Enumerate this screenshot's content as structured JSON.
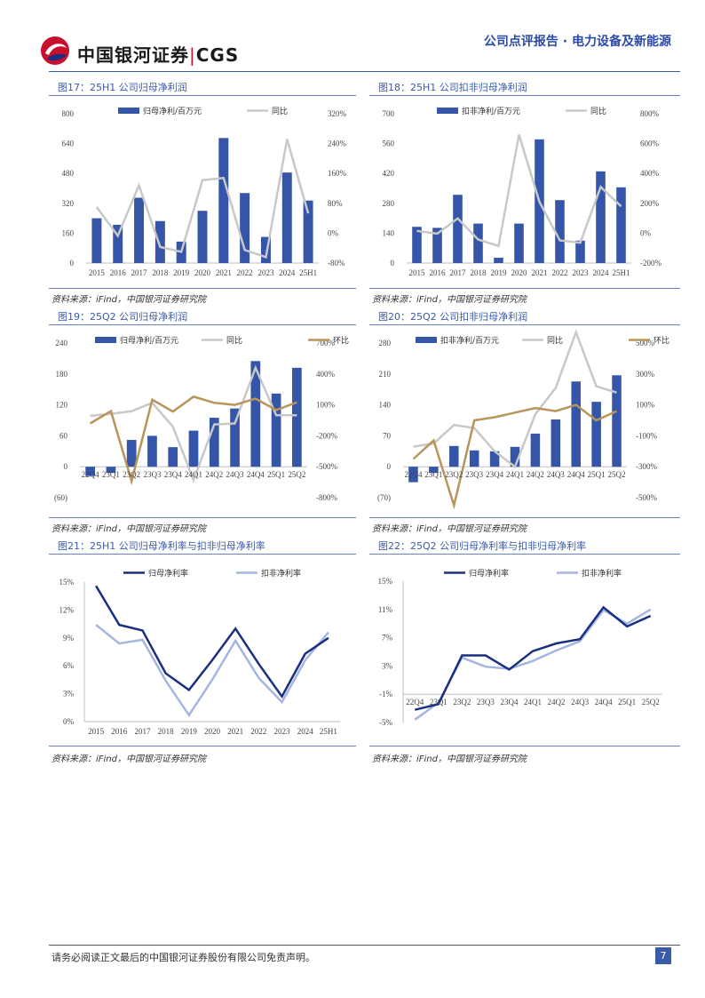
{
  "header": {
    "logo_text": "中国银河证券",
    "logo_sep": "|",
    "logo_en": "CGS",
    "report_type": "公司点评报告 · 电力设备及新能源"
  },
  "figures": [
    {
      "title": "图17：25H1 公司归母净利润",
      "source": "资料来源：iFind，中国银河证券研究院"
    },
    {
      "title": "图18：25H1 公司扣非归母净利润",
      "source": "资料来源：iFind，中国银河证券研究院"
    },
    {
      "title": "图19：25Q2 公司归母净利润",
      "source": "资料来源：iFind，中国银河证券研究院"
    },
    {
      "title": "图20：25Q2 公司扣非归母净利润",
      "source": "资料来源：iFind，中国银河证券研究院"
    },
    {
      "title": "图21：25H1 公司归母净利率与扣非归母净利率",
      "source": "资料来源：iFind，中国银河证券研究院"
    },
    {
      "title": "图22：25Q2 公司归母净利率与扣非归母净利率",
      "source": "资料来源：iFind，中国银河证券研究院"
    }
  ],
  "colors": {
    "bar": "#3555a8",
    "yoy": "#c8c8c8",
    "qoq": "#b8955a",
    "line1": "#1a2f80",
    "line2": "#a4b6e0",
    "accent": "#3a5ba8"
  },
  "chart_data": [
    {
      "type": "bar",
      "categories": [
        "2015",
        "2016",
        "2017",
        "2018",
        "2019",
        "2020",
        "2021",
        "2022",
        "2023",
        "2024",
        "25H1"
      ],
      "series": [
        {
          "name": "归母净利/百万元",
          "type": "bar",
          "axis": "left",
          "values": [
            240,
            205,
            350,
            225,
            115,
            280,
            670,
            375,
            140,
            485,
            335
          ]
        },
        {
          "name": "同比",
          "type": "line",
          "axis": "right",
          "values": [
            70,
            -7,
            128,
            -37,
            -50,
            142,
            148,
            -45,
            -64,
            252,
            53
          ]
        }
      ],
      "ylim_left": [
        0,
        800
      ],
      "yticks_left": [
        "0",
        "160",
        "320",
        "480",
        "640",
        "800"
      ],
      "ylim_right": [
        -80,
        320
      ],
      "yticks_right": [
        "-80%",
        "0%",
        "80%",
        "160%",
        "240%",
        "320%"
      ]
    },
    {
      "type": "bar",
      "categories": [
        "2015",
        "2016",
        "2017",
        "2018",
        "2019",
        "2020",
        "2021",
        "2022",
        "2023",
        "2024",
        "25H1"
      ],
      "series": [
        {
          "name": "扣非净利/百万元",
          "type": "bar",
          "axis": "left",
          "values": [
            170,
            165,
            320,
            185,
            25,
            185,
            580,
            295,
            105,
            430,
            355
          ]
        },
        {
          "name": "同比",
          "type": "line",
          "axis": "right",
          "values": [
            15,
            -3,
            99,
            -42,
            -86,
            660,
            210,
            -48,
            -64,
            310,
            180
          ]
        }
      ],
      "ylim_left": [
        0,
        700
      ],
      "yticks_left": [
        "0",
        "140",
        "280",
        "420",
        "560",
        "700"
      ],
      "ylim_right": [
        -200,
        800
      ],
      "yticks_right": [
        "-200%",
        "0%",
        "200%",
        "400%",
        "600%",
        "800%"
      ]
    },
    {
      "type": "bar",
      "categories": [
        "22Q4",
        "23Q1",
        "23Q2",
        "23Q3",
        "23Q4",
        "24Q1",
        "24Q2",
        "24Q3",
        "24Q4",
        "25Q1",
        "25Q2"
      ],
      "series": [
        {
          "name": "归母净利/百万元",
          "type": "bar",
          "axis": "left",
          "values": [
            -18,
            -12,
            52,
            60,
            38,
            70,
            95,
            113,
            205,
            142,
            192
          ]
        },
        {
          "name": "同比",
          "type": "line",
          "axis": "right",
          "values": [
            -6,
            12,
            40,
            120,
            -110,
            -630,
            -90,
            -80,
            460,
            0,
            0
          ]
        },
        {
          "name": "环比",
          "type": "line",
          "axis": "right",
          "values": [
            -80,
            40,
            -640,
            150,
            35,
            180,
            120,
            100,
            160,
            50,
            125
          ]
        }
      ],
      "ylim_left": [
        -60,
        240
      ],
      "yticks_left": [
        "(60)",
        "0",
        "60",
        "120",
        "180",
        "240"
      ],
      "ylim_right": [
        -800,
        700
      ],
      "yticks_right": [
        "-800%",
        "-500%",
        "-200%",
        "100%",
        "400%",
        "700%"
      ]
    },
    {
      "type": "bar",
      "categories": [
        "22Q4",
        "23Q1",
        "23Q2",
        "23Q3",
        "23Q4",
        "24Q1",
        "24Q2",
        "24Q3",
        "24Q4",
        "25Q1",
        "25Q2"
      ],
      "series": [
        {
          "name": "扣非净利/百万元",
          "type": "bar",
          "axis": "left",
          "values": [
            -35,
            -14,
            47,
            37,
            35,
            45,
            75,
            107,
            193,
            147,
            207
          ]
        },
        {
          "name": "同比",
          "type": "line",
          "axis": "right",
          "values": [
            -170,
            -150,
            -30,
            -50,
            -200,
            -300,
            40,
            210,
            570,
            220,
            180
          ]
        },
        {
          "name": "环比",
          "type": "line",
          "axis": "right",
          "values": [
            -250,
            -130,
            -550,
            0,
            20,
            50,
            80,
            60,
            100,
            0,
            60
          ]
        }
      ],
      "ylim_left": [
        -70,
        280
      ],
      "yticks_left": [
        "(70)",
        "0",
        "70",
        "140",
        "210",
        "280"
      ],
      "ylim_right": [
        -500,
        500
      ],
      "yticks_right": [
        "-500%",
        "-300%",
        "-100%",
        "100%",
        "300%",
        "500%"
      ]
    },
    {
      "type": "line",
      "categories": [
        "2015",
        "2016",
        "2017",
        "2018",
        "2019",
        "2020",
        "2021",
        "2022",
        "2023",
        "2024",
        "25H1"
      ],
      "series": [
        {
          "name": "归母净利率",
          "values": [
            14.6,
            10.4,
            9.8,
            5.2,
            3.4,
            6.6,
            10.0,
            6.2,
            2.7,
            7.3,
            9.0
          ]
        },
        {
          "name": "扣非净利率",
          "values": [
            10.4,
            8.4,
            8.8,
            4.4,
            0.7,
            4.5,
            8.7,
            4.7,
            2.1,
            6.6,
            9.6
          ]
        }
      ],
      "ylim": [
        0,
        15
      ],
      "yticks": [
        "0%",
        "3%",
        "6%",
        "9%",
        "12%",
        "15%"
      ]
    },
    {
      "type": "line",
      "categories": [
        "22Q4",
        "23Q1",
        "23Q2",
        "23Q3",
        "23Q4",
        "24Q1",
        "24Q2",
        "24Q3",
        "24Q4",
        "25Q1",
        "25Q2"
      ],
      "series": [
        {
          "name": "归母净利率",
          "values": [
            -3.2,
            -2.4,
            4.5,
            4.5,
            2.5,
            5.1,
            6.2,
            6.8,
            11.3,
            8.6,
            10.1
          ]
        },
        {
          "name": "扣非净利率",
          "values": [
            -4.6,
            -2.2,
            4.2,
            2.9,
            2.6,
            3.7,
            5.2,
            6.5,
            10.9,
            9.0,
            11.0
          ]
        }
      ],
      "ylim": [
        -5,
        15
      ],
      "yticks": [
        "-5%",
        "-1%",
        "3%",
        "7%",
        "11%",
        "15%"
      ]
    }
  ],
  "footer": {
    "disclaimer": "请务必阅读正文最后的中国银河证券股份有限公司免责声明。",
    "page": "7"
  }
}
